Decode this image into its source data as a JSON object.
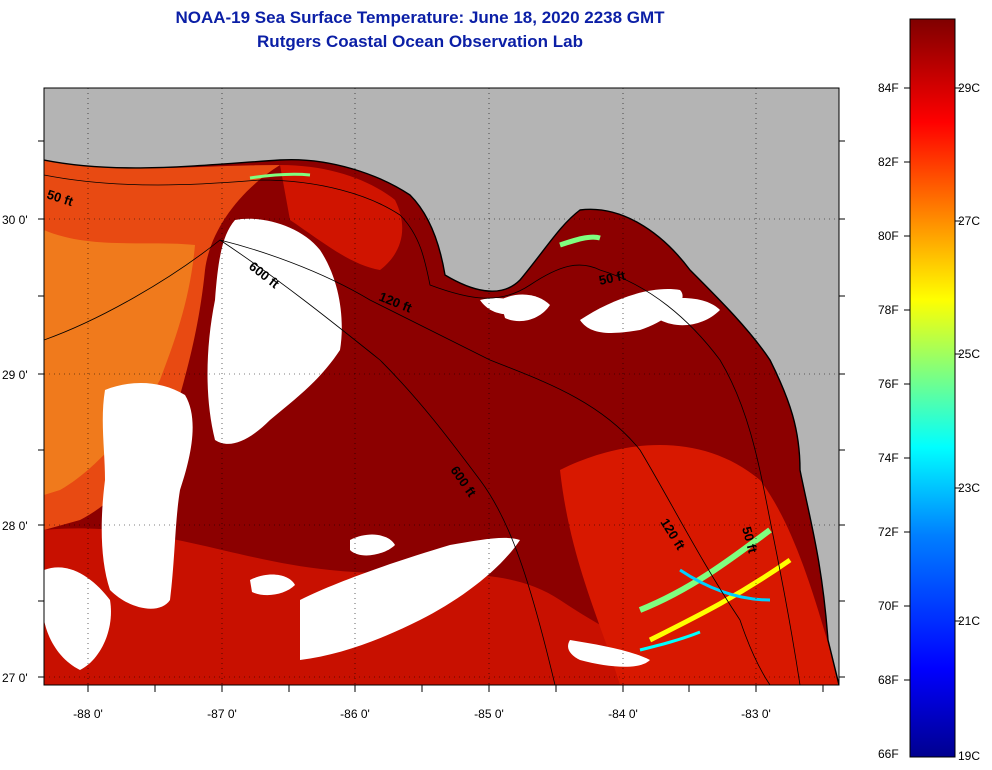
{
  "header": {
    "title": "NOAA-19 Sea Surface Temperature:  June 18, 2020 2238 GMT",
    "subtitle": "Rutgers Coastal Ocean Observation Lab"
  },
  "map": {
    "lat_labels": [
      "30 0'",
      "29 0'",
      "28 0'",
      "27 0'"
    ],
    "lon_labels": [
      "-88 0'",
      "-87 0'",
      "-86 0'",
      "-85 0'",
      "-84 0'",
      "-83 0'"
    ],
    "contours": {
      "c50_west": "50 ft",
      "c600_north": "600 ft",
      "c120_north": "120 ft",
      "c50_east": "50 ft",
      "c600_south": "600 ft",
      "c120_south": "120 ft",
      "c50_south": "50 ft"
    }
  },
  "colorbar": {
    "fahrenheit": [
      "84F",
      "82F",
      "80F",
      "78F",
      "76F",
      "74F",
      "72F",
      "70F",
      "68F",
      "66F"
    ],
    "celsius": [
      "29C",
      "27C",
      "25C",
      "23C",
      "21C",
      "19C"
    ],
    "colors": [
      "#7f0000",
      "#ff0000",
      "#ff7f00",
      "#ffff00",
      "#7fff7f",
      "#00ffff",
      "#007fff",
      "#0000ff",
      "#00008f"
    ]
  }
}
